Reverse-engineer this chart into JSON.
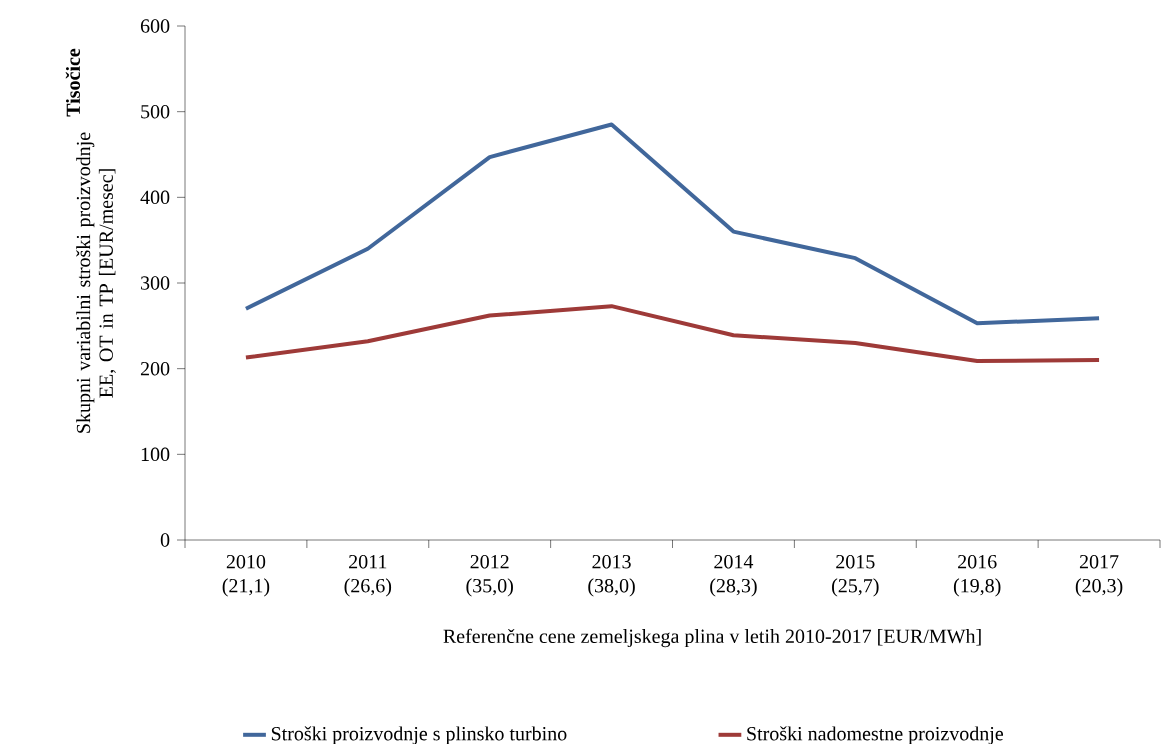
{
  "chart_data": {
    "type": "line",
    "categories": [
      "2010 (21,1)",
      "2011 (26,6)",
      "2012 (35,0)",
      "2013 (38,0)",
      "2014 (28,3)",
      "2015 (25,7)",
      "2016 (19,8)",
      "2017 (20,3)"
    ],
    "series": [
      {
        "name": "Stroški proizvodnje s plinsko turbino",
        "color": "#41679b",
        "values": [
          270,
          340,
          447,
          485,
          360,
          329,
          253,
          259
        ]
      },
      {
        "name": "Stroški nadomestne proizvodnje",
        "color": "#9e3a38",
        "values": [
          213,
          232,
          262,
          273,
          239,
          230,
          209,
          210
        ]
      }
    ],
    "ylabel": "Skupni variabilni stroški proizvodnje EE, OT in TP [EUR/mesec]",
    "xlabel": "Referenčne cene zemeljskega plina v letih 2010-2017 [EUR/MWh]",
    "annotations": [
      "Tisočice"
    ],
    "ylim": [
      0,
      600
    ],
    "yticks": [
      0,
      100,
      200,
      300,
      400,
      500,
      600
    ],
    "legend": "bottom",
    "grid": false,
    "marker": "none",
    "line_style": "solid"
  }
}
